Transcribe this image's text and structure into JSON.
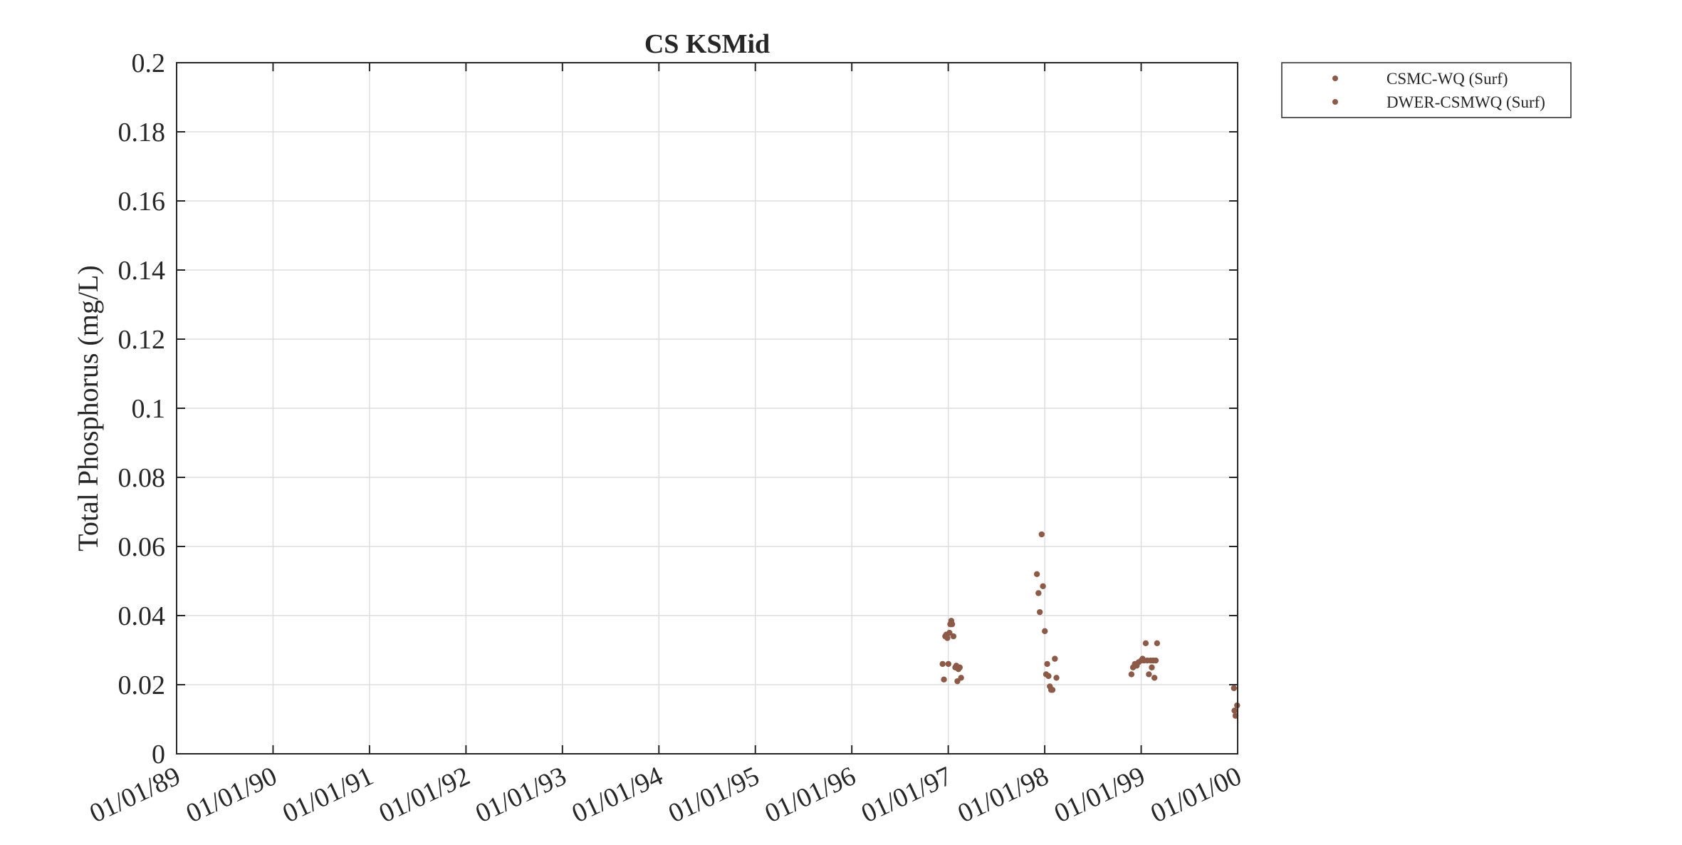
{
  "chart_data": {
    "type": "scatter",
    "title": "CS KSMid",
    "xlabel": "",
    "ylabel": "Total Phosphorus (mg/L)",
    "ylim": [
      0,
      0.2
    ],
    "yticks": [
      "0",
      "0.02",
      "0.04",
      "0.06",
      "0.08",
      "0.1",
      "0.12",
      "0.14",
      "0.16",
      "0.18",
      "0.2"
    ],
    "xlim": [
      "1989-01-01",
      "2000-01-01"
    ],
    "xticks": [
      "01/01/89",
      "01/01/90",
      "01/01/91",
      "01/01/92",
      "01/01/93",
      "01/01/94",
      "01/01/95",
      "01/01/96",
      "01/01/97",
      "01/01/98",
      "01/01/99",
      "01/01/00"
    ],
    "grid": true,
    "legend_position": "outside-top-right",
    "marker_color": "#8c5a46",
    "series": [
      {
        "name": "CSMC-WQ (Surf)",
        "points": [
          {
            "x": "1996-12-10",
            "y": 0.026
          },
          {
            "x": "1996-12-15",
            "y": 0.0215
          },
          {
            "x": "1996-12-20",
            "y": 0.034
          },
          {
            "x": "1996-12-24",
            "y": 0.0345
          },
          {
            "x": "1996-12-28",
            "y": 0.0335
          },
          {
            "x": "1997-01-01",
            "y": 0.026
          },
          {
            "x": "1997-01-05",
            "y": 0.035
          },
          {
            "x": "1997-01-08",
            "y": 0.0375
          },
          {
            "x": "1997-01-12",
            "y": 0.0385
          },
          {
            "x": "1997-01-15",
            "y": 0.0375
          },
          {
            "x": "1997-01-20",
            "y": 0.034
          },
          {
            "x": "1997-01-27",
            "y": 0.025
          },
          {
            "x": "1997-01-31",
            "y": 0.0255
          },
          {
            "x": "1997-02-04",
            "y": 0.021
          },
          {
            "x": "1997-02-08",
            "y": 0.0245
          },
          {
            "x": "1997-02-13",
            "y": 0.025
          },
          {
            "x": "1997-02-18",
            "y": 0.022
          },
          {
            "x": "1997-12-02",
            "y": 0.052
          },
          {
            "x": "1997-12-08",
            "y": 0.0465
          },
          {
            "x": "1997-12-13",
            "y": 0.041
          },
          {
            "x": "1997-12-20",
            "y": 0.0635
          },
          {
            "x": "1997-12-25",
            "y": 0.0485
          },
          {
            "x": "1998-01-01",
            "y": 0.0355
          },
          {
            "x": "1998-01-06",
            "y": 0.023
          },
          {
            "x": "1998-01-10",
            "y": 0.026
          },
          {
            "x": "1998-01-15",
            "y": 0.0225
          },
          {
            "x": "1998-01-20",
            "y": 0.0195
          },
          {
            "x": "1998-01-25",
            "y": 0.0185
          },
          {
            "x": "1998-01-30",
            "y": 0.0185
          },
          {
            "x": "1998-02-08",
            "y": 0.0275
          },
          {
            "x": "1998-02-14",
            "y": 0.022
          }
        ]
      },
      {
        "name": "DWER-CSMWQ (Surf)",
        "points": [
          {
            "x": "1998-11-25",
            "y": 0.023
          },
          {
            "x": "1998-12-01",
            "y": 0.025
          },
          {
            "x": "1998-12-08",
            "y": 0.026
          },
          {
            "x": "1998-12-15",
            "y": 0.0255
          },
          {
            "x": "1998-12-22",
            "y": 0.0265
          },
          {
            "x": "1999-01-01",
            "y": 0.027
          },
          {
            "x": "1999-01-06",
            "y": 0.0275
          },
          {
            "x": "1999-01-12",
            "y": 0.027
          },
          {
            "x": "1999-01-18",
            "y": 0.032
          },
          {
            "x": "1999-01-24",
            "y": 0.027
          },
          {
            "x": "1999-01-30",
            "y": 0.023
          },
          {
            "x": "1999-02-05",
            "y": 0.027
          },
          {
            "x": "1999-02-10",
            "y": 0.025
          },
          {
            "x": "1999-02-15",
            "y": 0.027
          },
          {
            "x": "1999-02-20",
            "y": 0.022
          },
          {
            "x": "1999-02-25",
            "y": 0.027
          },
          {
            "x": "1999-03-02",
            "y": 0.032
          },
          {
            "x": "1999-12-18",
            "y": 0.019
          },
          {
            "x": "1999-12-20",
            "y": 0.0125
          },
          {
            "x": "1999-12-24",
            "y": 0.011
          },
          {
            "x": "1999-12-30",
            "y": 0.014
          }
        ]
      }
    ]
  }
}
